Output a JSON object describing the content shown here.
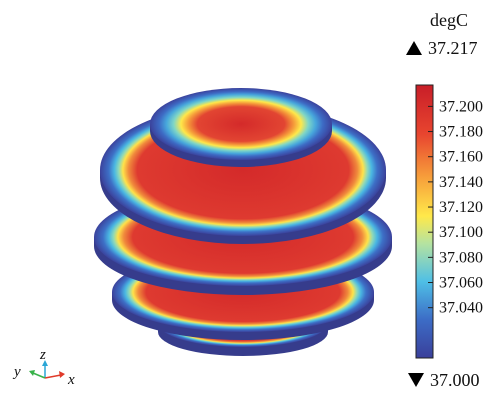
{
  "chart_data": {
    "type": "heatmap",
    "title": "",
    "unit": "degC",
    "max_label": "37.217",
    "min_label": "37.000",
    "range": [
      37.0,
      37.217
    ],
    "colorbar_ticks": [
      "37.200",
      "37.180",
      "37.160",
      "37.140",
      "37.120",
      "37.100",
      "37.080",
      "37.060",
      "37.040"
    ],
    "colormap": "Rainbow",
    "colors": [
      "#3a3f9a",
      "#3c7fd0",
      "#4fc6e6",
      "#a9e0a8",
      "#ffe94a",
      "#f7a03b",
      "#e8452f",
      "#c81e28"
    ],
    "slices": [
      {
        "position": "top",
        "core_value": 37.21
      },
      {
        "position": "upper-middle",
        "core_value": 37.21
      },
      {
        "position": "middle",
        "core_value": 37.21
      },
      {
        "position": "lower-middle",
        "core_value": 37.21
      },
      {
        "position": "bottom",
        "core_value": 37.21
      }
    ],
    "axes_triad": {
      "labels": [
        "y",
        "z",
        "x"
      ]
    }
  }
}
